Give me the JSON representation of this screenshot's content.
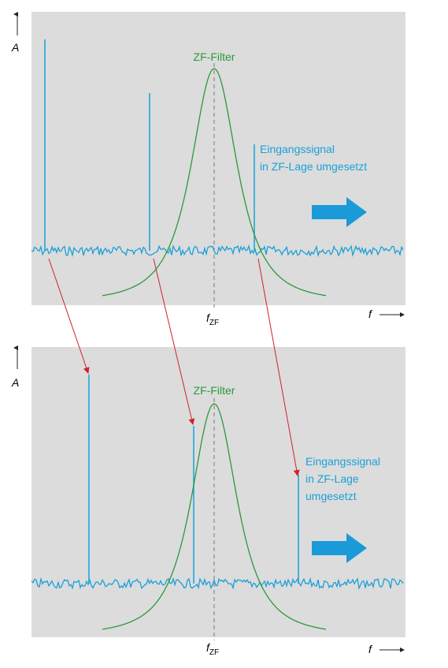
{
  "panels": [
    {
      "axis_label": "A",
      "filter_label": "ZF-Filter",
      "signal_label": [
        "Eingangssignal",
        "in ZF-Lage umgesetzt"
      ],
      "center_label": {
        "base": "f",
        "sub": "ZF"
      },
      "x_axis_label": "f"
    },
    {
      "axis_label": "A",
      "filter_label": "ZF-Filter",
      "signal_label": [
        "Eingangssignal",
        "in ZF-Lage",
        "umgesetzt"
      ],
      "center_label": {
        "base": "f",
        "sub": "ZF"
      },
      "x_axis_label": "f"
    }
  ]
}
